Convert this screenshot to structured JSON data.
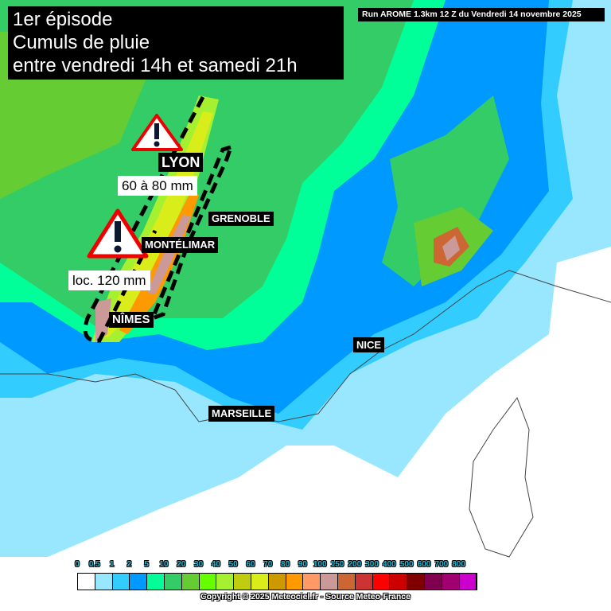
{
  "title": {
    "lines": [
      "1er épisode",
      "Cumuls de pluie",
      "entre vendredi 14h et samedi 21h"
    ]
  },
  "run_info": "Run AROME 1.3km 12 Z du Vendredi 14 novembre 2025",
  "cities": {
    "lyon": "LYON",
    "grenoble": "GRENOBLE",
    "montelimar": "MONTÉLIMAR",
    "nimes": "NÎMES",
    "nice": "NICE",
    "marseille": "MARSEILLE"
  },
  "annotations": {
    "north_zone": "60 à 80 mm",
    "south_zone": "loc. 120 mm"
  },
  "icons": {
    "warning": "warning-triangle-icon"
  },
  "legend": {
    "labels": [
      "0",
      "0.5",
      "1",
      "2",
      "5",
      "10",
      "20",
      "30",
      "40",
      "50",
      "60",
      "70",
      "80",
      "90",
      "100",
      "150",
      "200",
      "300",
      "400",
      "500",
      "600",
      "700",
      "800"
    ],
    "colors": [
      "#ffffff",
      "#99e6ff",
      "#33ccff",
      "#0099ff",
      "#00ff99",
      "#33cc66",
      "#66cc33",
      "#66ff00",
      "#a6f032",
      "#bfcc10",
      "#d9ed1a",
      "#cc9900",
      "#ff9900",
      "#ff9966",
      "#cc9999",
      "#cc6633",
      "#cc3333",
      "#ff0000",
      "#cc0000",
      "#800000",
      "#800050",
      "#a00070",
      "#cc00cc"
    ]
  },
  "copyright": "Copyright © 2025 Meteociel.fr - Source Meteo-France"
}
